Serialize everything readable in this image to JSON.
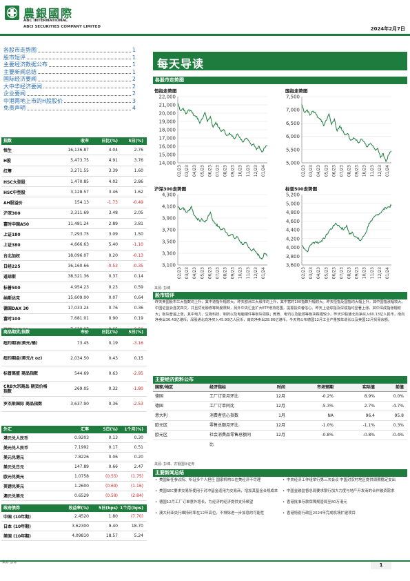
{
  "header": {
    "brand_cn": "農銀國際",
    "brand_en1": "ABC INTERNATIONAL",
    "brand_en2": "ABCI SECURITIES COMPANY LIMITED",
    "date": "2024年2月7日",
    "accent": "#1e7c3e"
  },
  "toc": [
    {
      "title": "各股市走势图",
      "page": "1"
    },
    {
      "title": "股市短评",
      "page": "1"
    },
    {
      "title": "主要经济数据公布",
      "page": "1"
    },
    {
      "title": "主要新闻总结",
      "page": "1"
    },
    {
      "title": "国际经济要闻",
      "page": "2"
    },
    {
      "title": "大中华经济要闻",
      "page": "2"
    },
    {
      "title": "企业要闻",
      "page": "2"
    },
    {
      "title": "中港两地上市的H股股价",
      "page": "3"
    },
    {
      "title": "免责声明",
      "page": "4"
    }
  ],
  "indices": {
    "headers": [
      "指数",
      "收市",
      "日比(%)",
      "5日(%)"
    ],
    "rows": [
      {
        "name": "恒生",
        "close": "16,136.87",
        "day": "4.04",
        "five": "2.76",
        "day_neg": false,
        "five_neg": false
      },
      {
        "name": "H股",
        "close": "5,473.75",
        "day": "4.91",
        "five": "3.76",
        "day_neg": false,
        "five_neg": false
      },
      {
        "name": "红筹",
        "close": "3,271.55",
        "day": "3.39",
        "five": "1.60",
        "day_neg": false,
        "five_neg": false
      },
      {
        "name": "HSC大型股",
        "close": "1,470.85",
        "day": "4.02",
        "five": "2.86",
        "day_neg": false,
        "five_neg": false
      },
      {
        "name": "HSC中型股",
        "close": "3,128.57",
        "day": "3.46",
        "five": "1.62",
        "day_neg": false,
        "five_neg": false
      },
      {
        "name": "AH股溢价",
        "close": "154.13",
        "day": "-1.73",
        "five": "-0.49",
        "day_neg": true,
        "five_neg": true
      },
      {
        "name": "沪深300",
        "close": "3,311.69",
        "day": "3.48",
        "five": "2.05",
        "day_neg": false,
        "five_neg": false
      },
      {
        "name": "富时中国A50",
        "close": "11,481.24",
        "day": "2.89",
        "five": "3.81",
        "day_neg": false,
        "five_neg": false
      },
      {
        "name": "上证180",
        "close": "7,293.75",
        "day": "3.09",
        "five": "1.50",
        "day_neg": false,
        "five_neg": false
      },
      {
        "name": "上证380",
        "close": "4,666.63",
        "day": "5.40",
        "five": "-1.10",
        "day_neg": false,
        "five_neg": true
      },
      {
        "name": "台北加权",
        "close": "18,096.07",
        "day": "0.20",
        "five": "-0.13",
        "day_neg": false,
        "five_neg": true
      },
      {
        "name": "日经225",
        "close": "36,160.66",
        "day": "-0.53",
        "five": "-0.35",
        "day_neg": true,
        "five_neg": true
      },
      {
        "name": "道琼斯",
        "close": "38,521.36",
        "day": "0.37",
        "five": "0.14",
        "day_neg": false,
        "five_neg": false
      },
      {
        "name": "标普500",
        "close": "4,954.23",
        "day": "0.23",
        "five": "0.59",
        "day_neg": false,
        "five_neg": false
      },
      {
        "name": "纳斯达克",
        "close": "15,609.00",
        "day": "0.07",
        "five": "0.64",
        "day_neg": false,
        "five_neg": false
      },
      {
        "name": "德国DAX 30",
        "close": "17,033.24",
        "day": "0.76",
        "five": "0.36",
        "day_neg": false,
        "five_neg": false
      },
      {
        "name": "富时100",
        "close": "7,681.01",
        "day": "0.90",
        "five": "0.19",
        "day_neg": false,
        "five_neg": false
      },
      {
        "name": "法国CAC 40",
        "close": "7,638.97",
        "day": "0.65",
        "five": "-0.50",
        "day_neg": false,
        "five_neg": true
      }
    ]
  },
  "commodities": {
    "headers": [
      "商品期货/指数",
      "市价",
      "日比(%)",
      "5日(%)"
    ],
    "rows": [
      {
        "name": "纽约期油(美元/桶)",
        "price": "73.45",
        "day": "0.19",
        "five": "-3.16",
        "day_neg": false,
        "five_neg": true
      },
      {
        "name": "纽约期金(美元/t oz)",
        "price": "2,034.50",
        "day": "0.43",
        "five": "0.15",
        "day_neg": false,
        "five_neg": false
      },
      {
        "name": "标普高盛 商品指数",
        "price": "544.69",
        "day": "0.63",
        "five": "-2.95",
        "day_neg": false,
        "five_neg": true
      },
      {
        "name": "CRB大宗商品 期货价格指数",
        "price": "269.05",
        "day": "0.32",
        "five": "-1.80",
        "day_neg": false,
        "five_neg": true
      },
      {
        "name": "罗杰斯国际 商品指数",
        "price": "3,637.90",
        "day": "0.36",
        "five": "-2.53",
        "day_neg": false,
        "five_neg": true
      }
    ]
  },
  "fx": {
    "headers": [
      "外汇",
      "汇率",
      "5日(%)",
      "1个月(%)"
    ],
    "rows": [
      {
        "name": "港元兑人民币",
        "rate": "0.9203",
        "five": "0.13",
        "month": "0.30",
        "neg": false
      },
      {
        "name": "美元兑人民币",
        "rate": "7.1992",
        "five": "0.17",
        "month": "0.51",
        "neg": false
      },
      {
        "name": "美元兑港元",
        "rate": "7.8226",
        "five": "0.06",
        "month": "0.20",
        "neg": false
      },
      {
        "name": "美元兑日元",
        "rate": "147.89",
        "five": "0.66",
        "month": "2.47",
        "neg": false
      },
      {
        "name": "欧元兑美元",
        "rate": "1.0758",
        "five": "(0.55)",
        "month": "(1.75)",
        "neg": true
      },
      {
        "name": "英镑兑美元",
        "rate": "1.2600",
        "five": "(0.69)",
        "month": "(1.16)",
        "neg": true
      },
      {
        "name": "澳元兑美元",
        "rate": "0.6529",
        "five": "(0.59)",
        "month": "(2.84)",
        "neg": true
      }
    ]
  },
  "bonds": {
    "headers": [
      "政府债券",
      "收益率(%)",
      "5日(bps)",
      "1个月(bps)"
    ],
    "rows": [
      {
        "name": "中国 (10年期)",
        "yield": "2.4520",
        "five": "1.80",
        "month": "(7.70)",
        "neg": true
      },
      {
        "name": "日本 (10年期)",
        "yield": "3.62300",
        "five": "9.40",
        "month": "18.70",
        "neg": false
      },
      {
        "name": "美国 (10年期)",
        "yield": "4.09810",
        "five": "18.57",
        "month": "5.24",
        "neg": false
      }
    ],
    "source": "来源: 彭博"
  },
  "main": {
    "title": "每天导读",
    "market_trend_header": "各股市走势图",
    "chart_source": "来源: 彭博",
    "brief_header": "股市短评",
    "brief_text": "昨天美国股市三大指数均上升，其中道指升幅较大。昨天欧洲三大股市均上升，其中富时100指数升幅较大。昨天恒指及国指均大幅上升，其中国指涨幅较大。中国证监会连发四文，并且优化融券等制度限制，另外中央汇金扩大ETF增持范围，提振投资者信心。昨天上证综指及深成指均显著上涨，其中深成指涨幅较大；板块普遍上涨，其中电力、生物科技、制药以及电脑硬件等板块领跌；教育、电讯以及能源等板块跌幅较小。昨天沪股通北向净买入60.13亿人民币，南向净卖出36.43亿港币；深股通北向净买入45.90亿人民币，南向净卖出28.86亿港币。今天将公布德国12月工业产量按年增长以及美国12月贸易余额。",
    "econ_header": "主要经济资料公布",
    "econ_headers": [
      "国家/地区",
      "经济指标",
      "时间",
      "市场预期",
      "实际值",
      "前值"
    ],
    "econ_rows": [
      {
        "region": "德国",
        "indicator": "工厂订单月环比",
        "time": "12月",
        "exp": "-0.2%",
        "act": "8.9%",
        "prev": "0.0%"
      },
      {
        "region": "德国",
        "indicator": "工厂订单同比",
        "time": "12月",
        "exp": "-5.3%",
        "act": "2.7%",
        "prev": "-4.7%"
      },
      {
        "region": "意大利",
        "indicator": "消费者信心指数",
        "time": "1月",
        "exp": "NA",
        "act": "96.4",
        "prev": "95.8"
      },
      {
        "region": "欧元区",
        "indicator": "零售总额月环比",
        "time": "12月",
        "exp": "-1.0%",
        "act": "-1.1%",
        "prev": "0.3%"
      },
      {
        "region": "欧元区",
        "indicator": "社会消费品零售总额同比",
        "time": "12月",
        "exp": "-0.8%",
        "act": "-0.8%",
        "prev": "-0.4%"
      }
    ],
    "econ_source": "来源: 彭博、农银国际证券",
    "news_header": "主要新闻总结",
    "news_left": [
      "美国新任参议院、听证多个人担任 国家机构以在美经济不尽理",
      "美国SEC要求交易所使用于对冲基金适用为交易商，增加其基金合规成本",
      "德国12月工厂订单意外增长，为经济的经济提供支持希望",
      "澳大利亚央行维持利率在12年高位，不排除进一步加息的可能性"
    ],
    "news_right": [
      "中央经济工作组举行第三次会议 中国对农村地区提供周期稳定支出",
      "中国金融监督总局要求银行加大力度与地产开发商的合作融资需求",
      "香港批准存款保障规管局至80万港元",
      "香港特别行政区2024年完成机场扩建项目"
    ],
    "page_number": "1"
  },
  "charts": {
    "hsi": {
      "title": "恒指走势图",
      "ticks_y": [
        "22,000",
        "21,000",
        "20,000",
        "19,000",
        "18,000",
        "17,000",
        "16,000",
        "15,000",
        "14,000"
      ],
      "ticks_x": [
        "02/23",
        "03/23",
        "04/23",
        "05/23",
        "06/23",
        "07/23",
        "08/23",
        "09/23",
        "10/23",
        "11/23",
        "12/23",
        "01/24"
      ],
      "ylim": [
        14000,
        22000
      ],
      "series_color": "#1e7c3e",
      "values": [
        21200,
        20300,
        20600,
        19900,
        20400,
        20300,
        19700,
        19600,
        18800,
        19300,
        20100,
        19000,
        19600,
        18300,
        18900,
        18300,
        17800,
        18000,
        17300,
        17600,
        17200,
        16900,
        17500,
        17000,
        16500,
        16900,
        16700,
        16200,
        16300,
        15600,
        16000,
        15300,
        15800,
        16100
      ]
    },
    "hscei": {
      "title": "国指走势图",
      "ticks_y": [
        "7,500",
        "7,000",
        "6,500",
        "6,000",
        "5,500",
        "5,000"
      ],
      "ticks_x": [
        "02/23",
        "03/23",
        "04/23",
        "05/23",
        "06/23",
        "07/23",
        "08/23",
        "09/23",
        "10/23",
        "11/23",
        "12/23",
        "01/24"
      ],
      "ylim": [
        5000,
        7500
      ],
      "series_color": "#1e7c3e",
      "values": [
        7200,
        6900,
        7000,
        6800,
        6950,
        6900,
        6700,
        6650,
        6400,
        6600,
        6850,
        6450,
        6650,
        6200,
        6400,
        6200,
        6050,
        6100,
        5850,
        5950,
        5850,
        5750,
        5900,
        5800,
        5600,
        5700,
        5650,
        5500,
        5550,
        5200,
        5350,
        5050,
        5300,
        5450
      ]
    },
    "csi300": {
      "title": "沪深300走势图",
      "ticks_y": [
        "4,300",
        "4,100",
        "3,900",
        "3,700",
        "3,500",
        "3,300",
        "3,100"
      ],
      "ticks_x": [
        "02/23",
        "03/23",
        "04/23",
        "05/23",
        "06/23",
        "07/23",
        "08/23",
        "09/23",
        "10/23",
        "11/23",
        "12/23",
        "01/24"
      ],
      "ylim": [
        3100,
        4300
      ],
      "series_color": "#1e7c3e",
      "values": [
        4100,
        4050,
        4080,
        4000,
        4020,
        4100,
        3950,
        3900,
        3850,
        3880,
        3830,
        3900,
        4000,
        3850,
        3800,
        3750,
        3700,
        3720,
        3650,
        3600,
        3620,
        3550,
        3580,
        3500,
        3450,
        3480,
        3400,
        3350,
        3380,
        3300,
        3250,
        3200,
        3300,
        3250
      ]
    },
    "spx": {
      "title": "标普500走势图",
      "ticks_y": [
        "5,200",
        "5,000",
        "4,800",
        "4,600",
        "4,400",
        "4,200",
        "4,000",
        "3,800",
        "3,600"
      ],
      "ticks_x": [
        "02/23",
        "03/23",
        "04/23",
        "05/23",
        "06/23",
        "07/23",
        "08/23",
        "09/23",
        "10/23",
        "11/23",
        "12/23",
        "01/24"
      ],
      "ylim": [
        3600,
        5200
      ],
      "series_color": "#1e7c3e",
      "values": [
        4050,
        3970,
        3900,
        4050,
        4100,
        4130,
        4100,
        4150,
        4200,
        4300,
        4400,
        4450,
        4550,
        4500,
        4450,
        4400,
        4500,
        4300,
        4350,
        4250,
        4200,
        4150,
        4250,
        4350,
        4550,
        4600,
        4700,
        4750,
        4780,
        4850,
        4900,
        4920,
        4950
      ]
    }
  }
}
